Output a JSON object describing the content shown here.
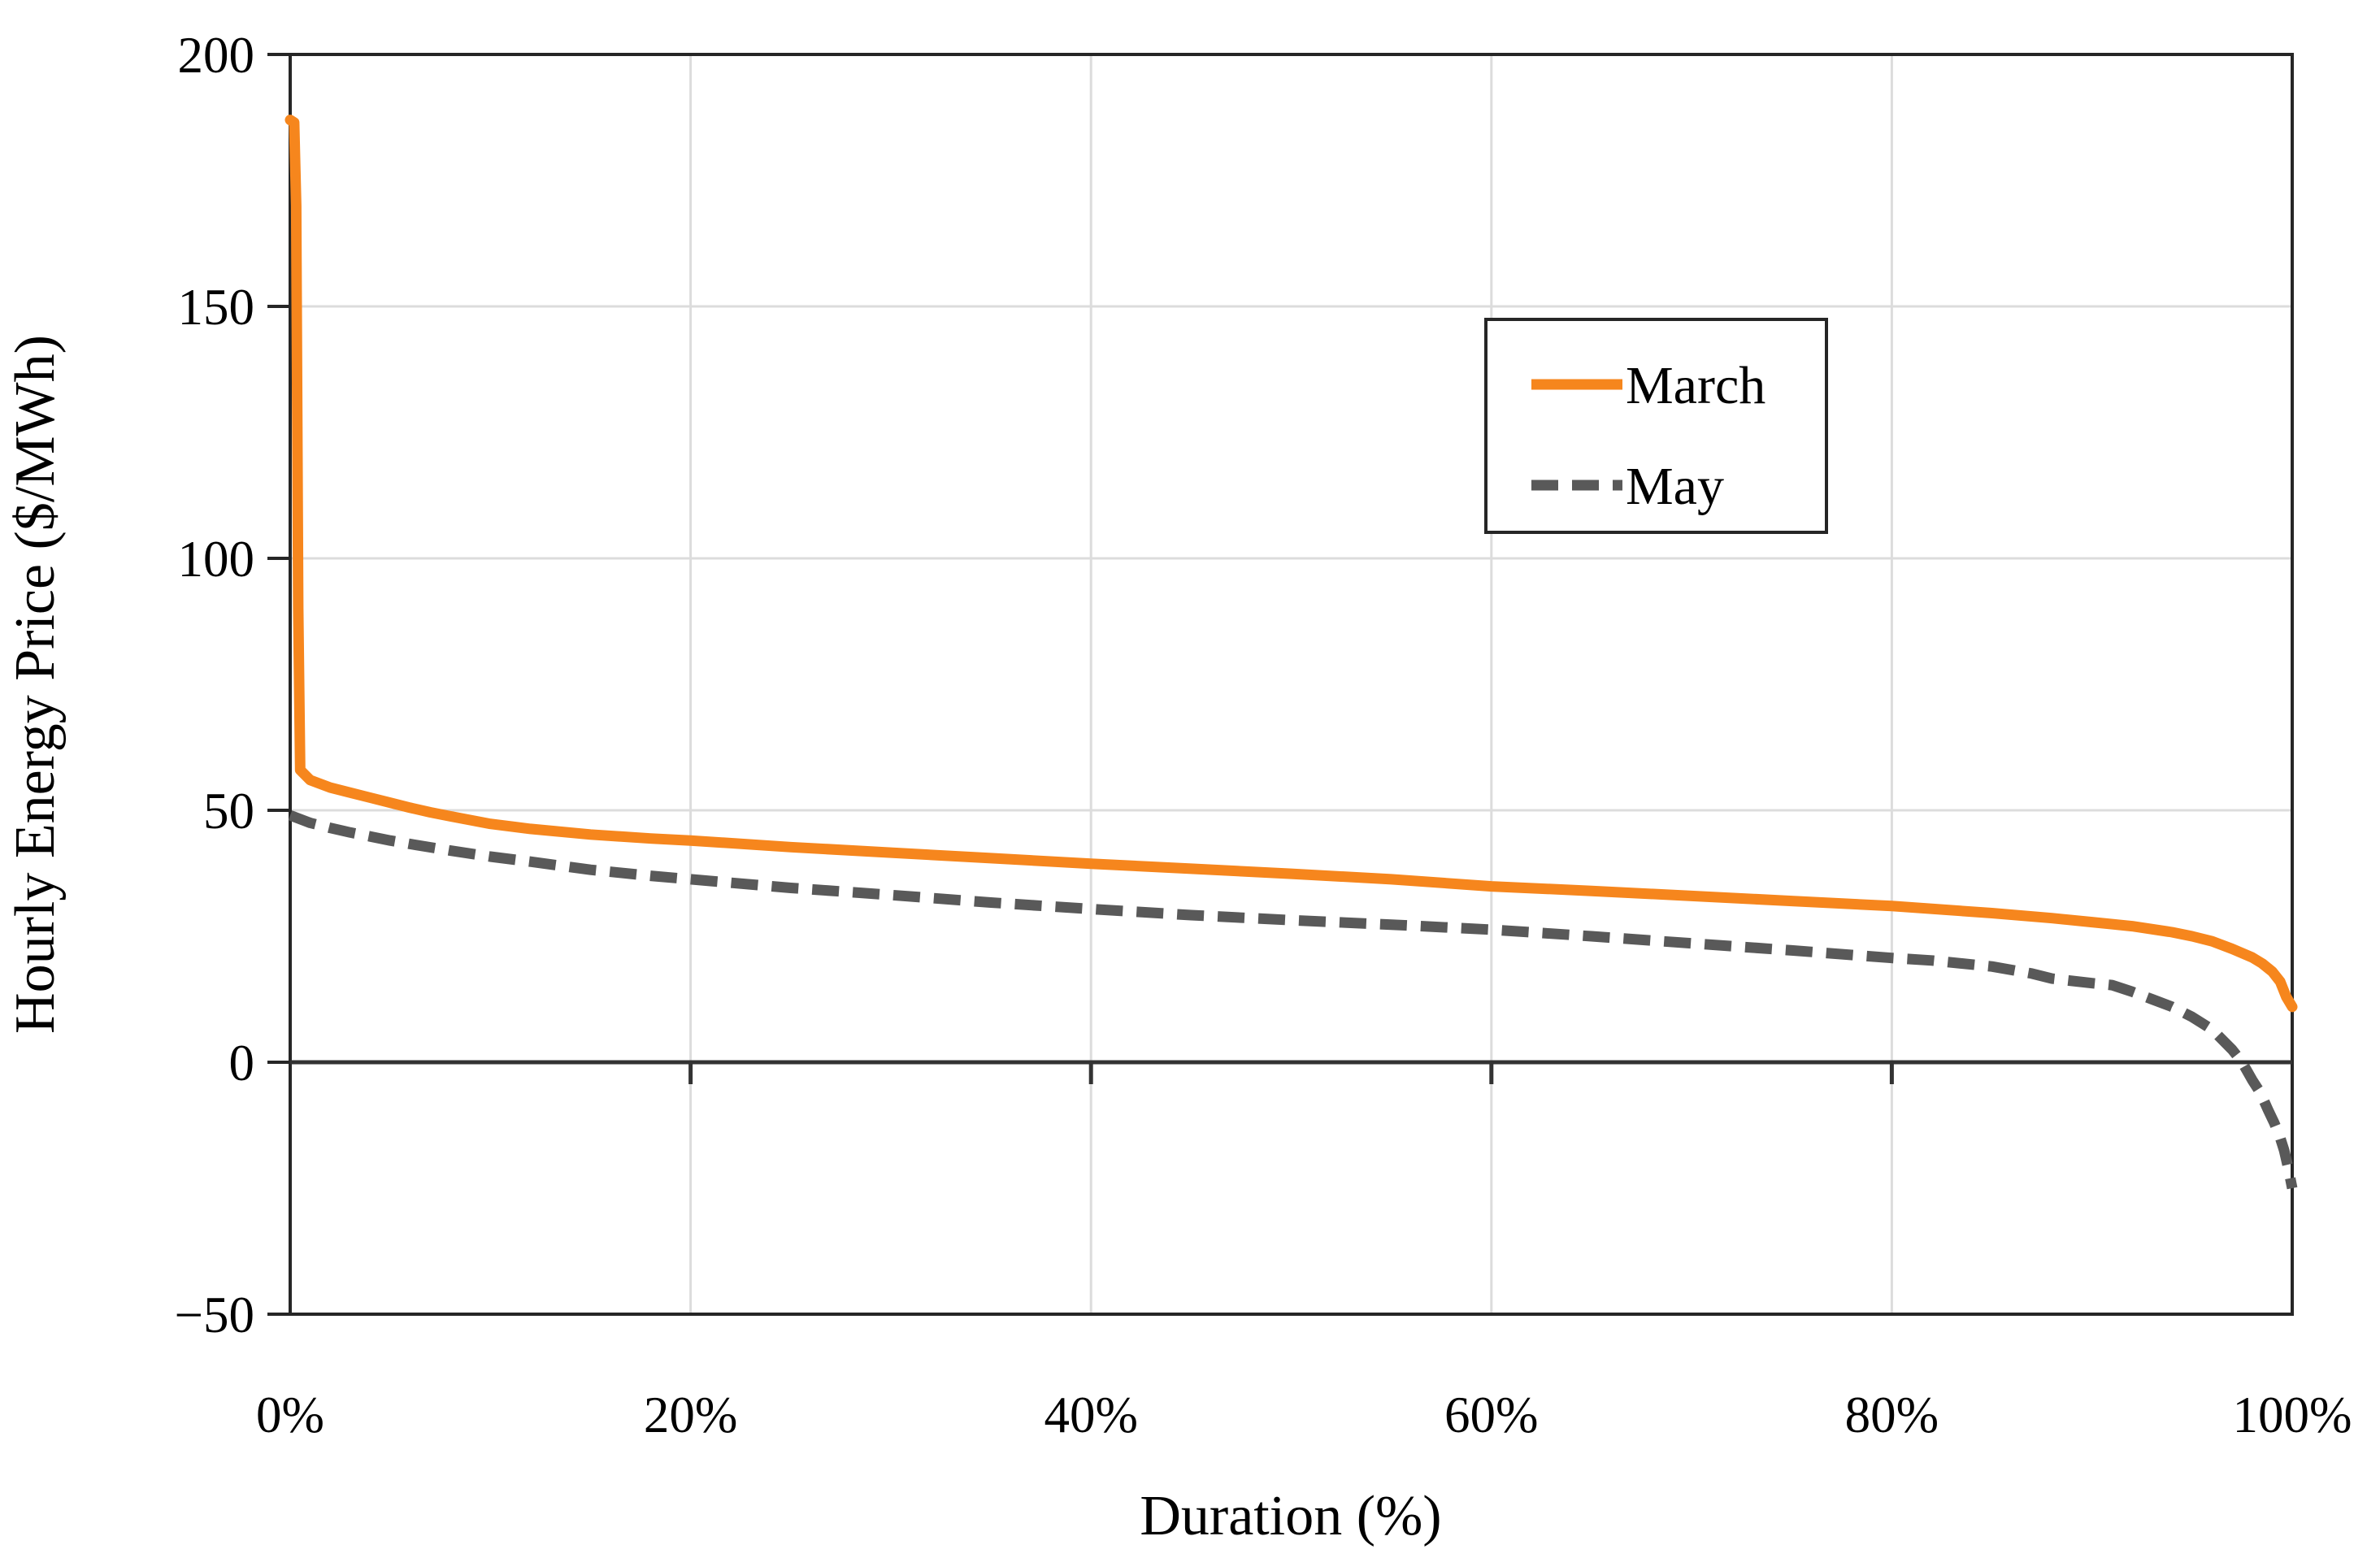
{
  "page": {
    "background": "#FFFFFF"
  },
  "colors": {
    "march_line": "#F6861D",
    "may_line": "#595959",
    "gridline": "#DCDCDC",
    "axis_line": "#262626",
    "zero_axis_line": "#333333",
    "legend_border": "#262626",
    "text": "#000000",
    "plot_background": "#FFFFFF"
  },
  "chart_data": {
    "type": "line",
    "title": "",
    "xlabel": "Duration (%)",
    "ylabel": "Hourly Energy Price ($/MWh)",
    "xlim": [
      0,
      100
    ],
    "ylim": [
      -50,
      200
    ],
    "grid_visible": true,
    "frame_visible": true,
    "axis_cross_y": 0,
    "x_ticks": [
      {
        "value": 0,
        "label": "0%"
      },
      {
        "value": 20,
        "label": "20%"
      },
      {
        "value": 40,
        "label": "40%"
      },
      {
        "value": 60,
        "label": "60%"
      },
      {
        "value": 80,
        "label": "80%"
      },
      {
        "value": 100,
        "label": "100%"
      }
    ],
    "y_ticks": [
      {
        "value": 200,
        "label": "200"
      },
      {
        "value": 150,
        "label": "150"
      },
      {
        "value": 100,
        "label": "100"
      },
      {
        "value": 50,
        "label": "50"
      },
      {
        "value": 0,
        "label": "0"
      },
      {
        "value": -50,
        "label": "−50"
      }
    ],
    "grid": {
      "horizontal_values": [
        150,
        100,
        50
      ],
      "vertical_values": [
        20,
        40,
        60,
        80
      ]
    },
    "legend": {
      "position": "inside-upper-right",
      "entries": [
        {
          "series": "March",
          "style": "solid"
        },
        {
          "series": "May",
          "style": "dashed"
        }
      ]
    },
    "series": [
      {
        "name": "March",
        "color": "#F6861D",
        "line_style": "solid",
        "points": [
          [
            0,
            187
          ],
          [
            0.2,
            186.5
          ],
          [
            0.3,
            170
          ],
          [
            0.4,
            90
          ],
          [
            0.5,
            58
          ],
          [
            1,
            56
          ],
          [
            2,
            54.5
          ],
          [
            3,
            53.5
          ],
          [
            4,
            52.5
          ],
          [
            5,
            51.5
          ],
          [
            6,
            50.5
          ],
          [
            7,
            49.6
          ],
          [
            8,
            48.8
          ],
          [
            10,
            47.3
          ],
          [
            12,
            46.3
          ],
          [
            15,
            45.2
          ],
          [
            18,
            44.4
          ],
          [
            20,
            44
          ],
          [
            25,
            42.7
          ],
          [
            30,
            41.6
          ],
          [
            35,
            40.5
          ],
          [
            40,
            39.4
          ],
          [
            45,
            38.4
          ],
          [
            50,
            37.4
          ],
          [
            55,
            36.3
          ],
          [
            60,
            34.9
          ],
          [
            65,
            34
          ],
          [
            70,
            33
          ],
          [
            75,
            32
          ],
          [
            80,
            31
          ],
          [
            85,
            29.6
          ],
          [
            88,
            28.6
          ],
          [
            90,
            27.8
          ],
          [
            92,
            27
          ],
          [
            94,
            25.8
          ],
          [
            95,
            25
          ],
          [
            96,
            24
          ],
          [
            97,
            22.5
          ],
          [
            98,
            20.8
          ],
          [
            98.5,
            19.6
          ],
          [
            99,
            18
          ],
          [
            99.4,
            16
          ],
          [
            99.7,
            13
          ],
          [
            100,
            11
          ]
        ]
      },
      {
        "name": "May",
        "color": "#595959",
        "line_style": "dashed",
        "points": [
          [
            0,
            49
          ],
          [
            1,
            47.5
          ],
          [
            2,
            46.5
          ],
          [
            3,
            45.6
          ],
          [
            4,
            44.8
          ],
          [
            5,
            44
          ],
          [
            6,
            43.3
          ],
          [
            8,
            42
          ],
          [
            10,
            40.8
          ],
          [
            12,
            39.8
          ],
          [
            15,
            38.2
          ],
          [
            18,
            37
          ],
          [
            20,
            36.3
          ],
          [
            25,
            34.6
          ],
          [
            30,
            33.2
          ],
          [
            35,
            31.7
          ],
          [
            40,
            30.4
          ],
          [
            45,
            29.2
          ],
          [
            50,
            28.2
          ],
          [
            55,
            27.3
          ],
          [
            60,
            26.3
          ],
          [
            65,
            25
          ],
          [
            70,
            23.6
          ],
          [
            75,
            22.2
          ],
          [
            80,
            20.7
          ],
          [
            82,
            20.2
          ],
          [
            85,
            19
          ],
          [
            87,
            17.6
          ],
          [
            88,
            16.6
          ],
          [
            90,
            15.7
          ],
          [
            91,
            15.3
          ],
          [
            92,
            14
          ],
          [
            93,
            12.5
          ],
          [
            94,
            11
          ],
          [
            95,
            9
          ],
          [
            96,
            6.5
          ],
          [
            97,
            2.5
          ],
          [
            97.5,
            0
          ],
          [
            98,
            -3.5
          ],
          [
            98.4,
            -6
          ],
          [
            98.8,
            -9.5
          ],
          [
            99.1,
            -12
          ],
          [
            99.4,
            -15
          ],
          [
            99.6,
            -17.5
          ],
          [
            99.8,
            -21
          ],
          [
            100,
            -25
          ]
        ]
      }
    ]
  }
}
